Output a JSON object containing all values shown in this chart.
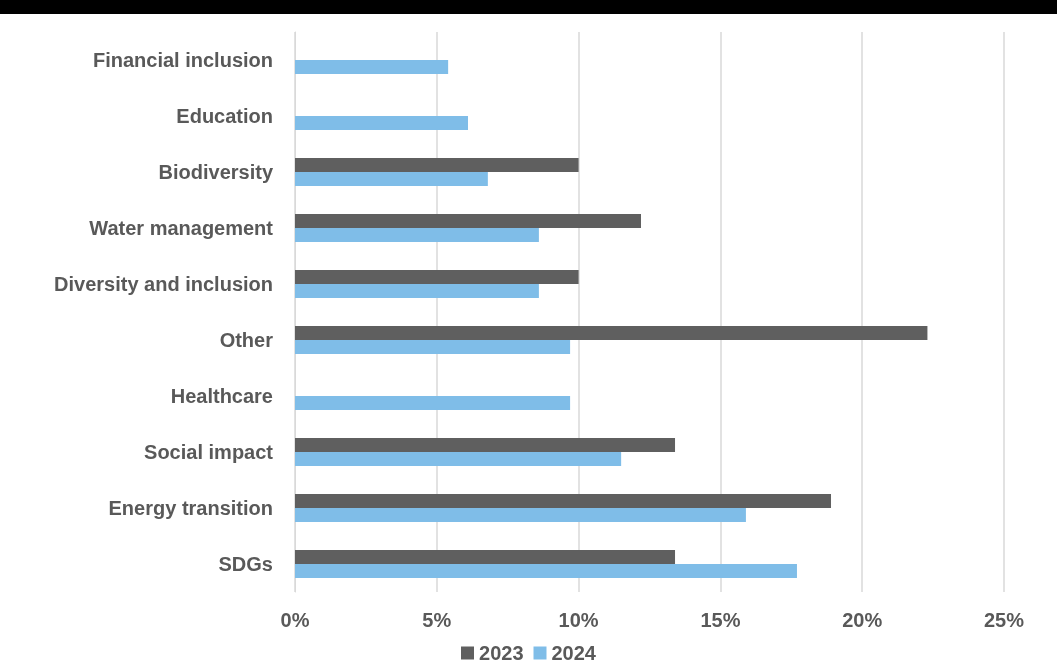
{
  "chart_data": {
    "type": "bar",
    "orientation": "horizontal",
    "categories": [
      "Financial inclusion",
      "Education",
      "Biodiversity",
      "Water management",
      "Diversity and inclusion",
      "Other",
      "Healthcare",
      "Social impact",
      "Energy transition",
      "SDGs"
    ],
    "series": [
      {
        "name": "2023",
        "color": "#5f5f5f",
        "values": [
          null,
          null,
          10.0,
          12.2,
          10.0,
          22.3,
          null,
          13.4,
          18.9,
          13.4
        ]
      },
      {
        "name": "2024",
        "color": "#7fbde8",
        "values": [
          5.4,
          6.1,
          6.8,
          8.6,
          8.6,
          9.7,
          9.7,
          11.5,
          15.9,
          17.7
        ]
      }
    ],
    "xlim": [
      0,
      25
    ],
    "xticks": [
      {
        "value": 0,
        "label": "0%"
      },
      {
        "value": 5,
        "label": "5%"
      },
      {
        "value": 10,
        "label": "10%"
      },
      {
        "value": 15,
        "label": "15%"
      },
      {
        "value": 20,
        "label": "20%"
      },
      {
        "value": 25,
        "label": "25%"
      }
    ],
    "grid": "x",
    "legend": "bottom"
  }
}
